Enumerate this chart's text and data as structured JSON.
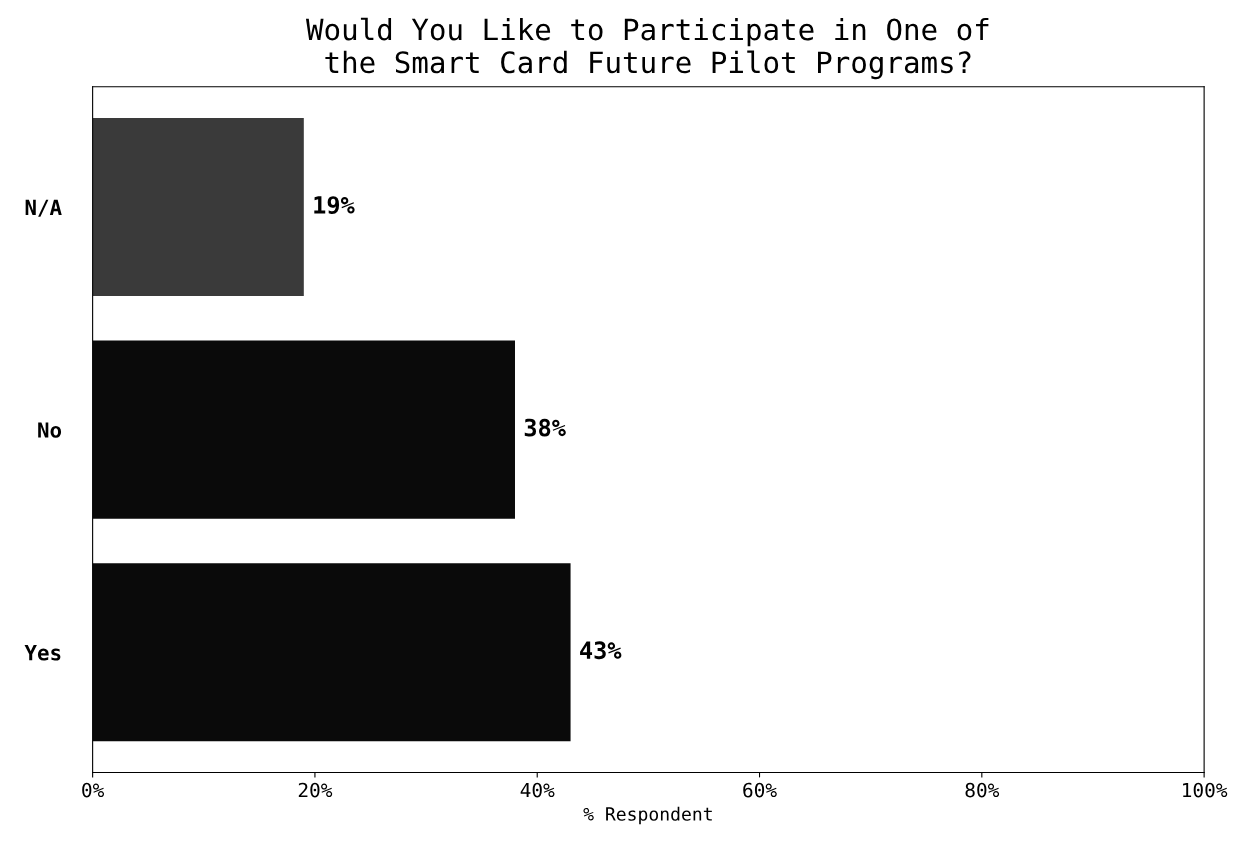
{
  "chart_data": {
    "type": "bar",
    "orientation": "horizontal",
    "title": "Would You Like to Participate in One of\nthe Smart Card Future Pilot Programs?",
    "xlabel": "% Respondent",
    "categories": [
      "N/A",
      "No",
      "Yes"
    ],
    "values": [
      19,
      38,
      43
    ],
    "colors": [
      "#3a3a3a",
      "#0a0a0a",
      "#0a0a0a"
    ],
    "value_labels": [
      "19%",
      "38%",
      "43%"
    ],
    "xlim": [
      0,
      100
    ],
    "xticks": [
      {
        "value": 0,
        "label": "0%"
      },
      {
        "value": 20,
        "label": "20%"
      },
      {
        "value": 40,
        "label": "40%"
      },
      {
        "value": 60,
        "label": "60%"
      },
      {
        "value": 80,
        "label": "80%"
      },
      {
        "value": 100,
        "label": "100%"
      }
    ],
    "grid": false
  }
}
